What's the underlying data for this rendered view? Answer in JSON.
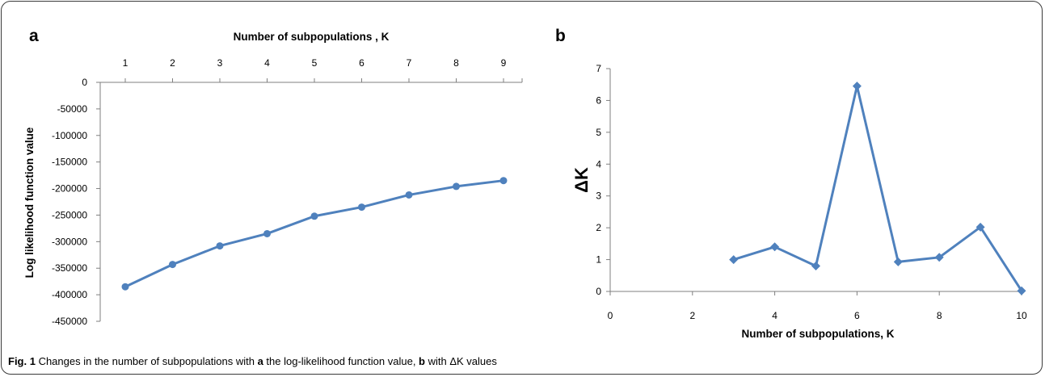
{
  "chart_data": [
    {
      "panel": "a",
      "type": "line",
      "xlabel": "Number of subpopulations , K",
      "ylabel": "Log likelihood function value",
      "x_axis_position": "top",
      "x": [
        1,
        2,
        3,
        4,
        5,
        6,
        7,
        8,
        9
      ],
      "values": [
        -385000,
        -343000,
        -308000,
        -285000,
        -252000,
        -235000,
        -212000,
        -196000,
        -185000
      ],
      "x_ticks": [
        "1",
        "2",
        "3",
        "4",
        "5",
        "6",
        "7",
        "8",
        "9"
      ],
      "y_ticks": [
        "0",
        "-50000",
        "-100000",
        "-150000",
        "-200000",
        "-250000",
        "-300000",
        "-350000",
        "-400000",
        "-450000"
      ],
      "ylim": [
        -450000,
        0
      ],
      "marker": "circle",
      "color": "#4f81bd",
      "grid": false
    },
    {
      "panel": "b",
      "type": "line",
      "xlabel": "Number of subpopulations, K",
      "ylabel": "ΔK",
      "x": [
        3,
        4,
        5,
        6,
        7,
        8,
        9,
        10
      ],
      "values": [
        1.0,
        1.4,
        0.8,
        6.45,
        0.93,
        1.07,
        2.02,
        0.02
      ],
      "x_ticks": [
        "0",
        "2",
        "4",
        "6",
        "8",
        "10"
      ],
      "y_ticks": [
        "0",
        "1",
        "2",
        "3",
        "4",
        "5",
        "6",
        "7"
      ],
      "xlim": [
        0,
        10
      ],
      "ylim": [
        0,
        7
      ],
      "marker": "diamond",
      "color": "#4f81bd",
      "grid": false
    }
  ],
  "caption": {
    "label": "Fig. 1",
    "text_1": " Changes in the number of subpopulations with ",
    "bold_a": "a",
    "text_2": " the log-likelihood function value, ",
    "bold_b": "b",
    "text_3": " with ΔK values"
  }
}
